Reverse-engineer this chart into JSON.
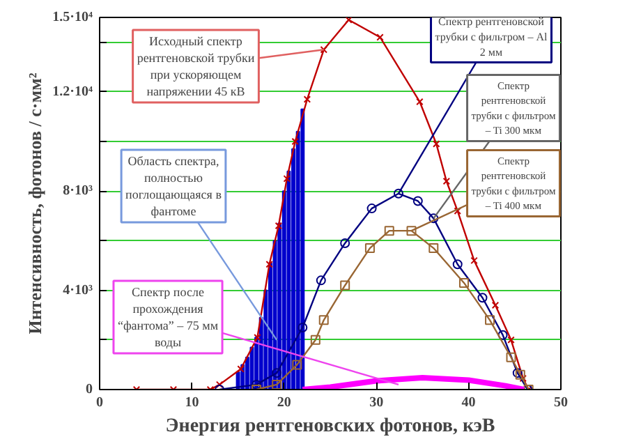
{
  "chart_data": {
    "type": "line",
    "xlabel": "Энергия рентгеновских фотонов, кэВ",
    "ylabel": "Интенсивность, фотонов / с·мм²",
    "xlim": [
      0,
      50
    ],
    "xticks": [
      0,
      10,
      20,
      30,
      40,
      50
    ],
    "ylim": [
      0,
      15000
    ],
    "yticks": [
      0,
      {
        "value": 2000,
        "label": null
      },
      {
        "value": 4000,
        "label": "4·10³"
      },
      {
        "value": 6000,
        "label": null
      },
      {
        "value": 8000,
        "label": "8·10³"
      },
      {
        "value": 10000,
        "label": null
      },
      {
        "value": 12000,
        "label": "1.2·10⁴"
      },
      {
        "value": 14000,
        "label": null
      },
      {
        "value": 15000,
        "label": "1.5·10⁴"
      }
    ],
    "grid": "y",
    "series": [
      {
        "type": "bar",
        "color": "#0000cc",
        "x": [
          15,
          15.5,
          16,
          16.5,
          17,
          17.5,
          18,
          18.5,
          19,
          19.5,
          20,
          20.5,
          21,
          21.5,
          22
        ],
        "values": [
          700,
          1000,
          1300,
          1700,
          2100,
          2900,
          4000,
          5100,
          6000,
          6700,
          8000,
          8800,
          9700,
          10400,
          11300
        ]
      },
      {
        "color": "#c00000",
        "marker": "cross",
        "x": [
          4,
          8,
          12,
          13,
          15.3,
          17.1,
          18.4,
          19.4,
          20.3,
          21.2,
          22.5,
          24.3,
          27,
          30.4,
          34.7,
          36.5,
          37.6,
          38.8,
          40.6,
          42.9,
          44.6,
          45.9,
          46.5
        ],
        "values": [
          0,
          0,
          0,
          200,
          830,
          2100,
          5050,
          6600,
          8500,
          10000,
          11700,
          13700,
          14900,
          14200,
          11600,
          9900,
          8400,
          7200,
          5200,
          3400,
          2000,
          450,
          0
        ]
      },
      {
        "color": "#000080",
        "marker": "circle",
        "x": [
          13,
          17,
          19.2,
          22,
          24,
          26.6,
          29.5,
          32.4,
          34.5,
          36.2,
          38.8,
          41.5,
          43.7,
          45.3,
          46.4
        ],
        "values": [
          0,
          200,
          670,
          2500,
          4400,
          5900,
          7300,
          7900,
          7600,
          6900,
          5050,
          3700,
          2200,
          670,
          0
        ]
      },
      {
        "color": "#996633",
        "marker": "square",
        "x": [
          17,
          19.2,
          21.4,
          23.4,
          24.3,
          26.6,
          29.3,
          31.4,
          33.8,
          36.2,
          39.5,
          42.3,
          44.6,
          45.6,
          46.5
        ],
        "values": [
          0,
          200,
          1000,
          2000,
          2800,
          4200,
          5700,
          6400,
          6400,
          5700,
          4300,
          2800,
          1300,
          600,
          0
        ]
      },
      {
        "color": "#ff00ff",
        "marker": "none",
        "x": [
          22,
          25,
          30,
          35,
          40,
          44,
          46
        ],
        "values": [
          0,
          100,
          350,
          480,
          380,
          150,
          0
        ]
      }
    ],
    "annotations": [
      {
        "text": "Исходный спектр рентгеновской трубки при ускоряющем напряжении 45 кВ",
        "x": 24.3,
        "y": 13700
      },
      {
        "text": "Область спектра, полностью поглощающаяся в фантоме",
        "x": 19.2,
        "y": 2000
      },
      {
        "text": "Спектр рентгеновской трубки с фильтром – Al 2 мм",
        "x": 32.4,
        "y": 7900
      },
      {
        "text": "Спектр рентгеновской трубки с фильтром – Ti 300 мкм",
        "x": 36.2,
        "y": 6900
      },
      {
        "text": "Спектр рентгеновской трубки с фильтром – Ti 400 мкм",
        "x": 33.8,
        "y": 6400
      },
      {
        "text": "Спектр после прохождения “фантома” – 75 мм воды",
        "x": 32.4,
        "y": 200
      }
    ]
  }
}
